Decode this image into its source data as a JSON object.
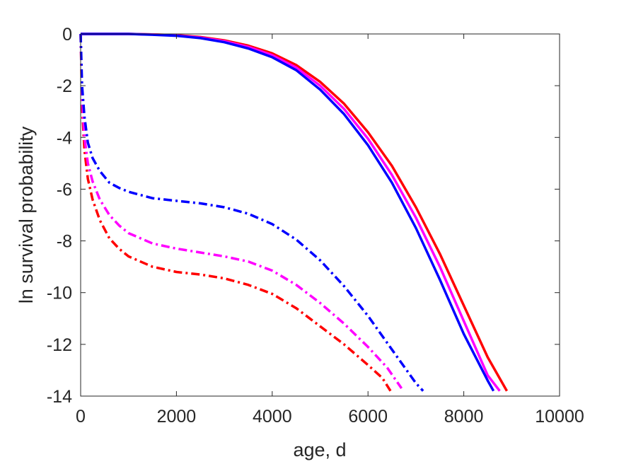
{
  "chart_data": {
    "type": "line",
    "xlabel": "age, d",
    "ylabel": "ln survival probability",
    "xlim": [
      0,
      10000
    ],
    "ylim": [
      -14,
      0
    ],
    "xticks": [
      0,
      2000,
      4000,
      6000,
      8000,
      10000
    ],
    "yticks": [
      -14,
      -12,
      -10,
      -8,
      -6,
      -4,
      -2,
      0
    ],
    "grid": false,
    "legend": "none",
    "series": [
      {
        "color": "#ff0000",
        "style": "solid",
        "x": [
          0,
          500,
          1000,
          1500,
          2000,
          2500,
          3000,
          3500,
          4000,
          4500,
          5000,
          5500,
          6000,
          6500,
          7000,
          7500,
          8000,
          8500,
          8900
        ],
        "y": [
          0,
          0,
          0,
          -0.02,
          -0.05,
          -0.12,
          -0.25,
          -0.45,
          -0.75,
          -1.2,
          -1.85,
          -2.7,
          -3.8,
          -5.1,
          -6.7,
          -8.5,
          -10.5,
          -12.5,
          -13.8
        ]
      },
      {
        "color": "#ff00ff",
        "style": "solid",
        "x": [
          0,
          500,
          1000,
          1500,
          2000,
          2500,
          3000,
          3500,
          4000,
          4500,
          5000,
          5500,
          6000,
          6500,
          7000,
          7500,
          8000,
          8500,
          8750
        ],
        "y": [
          0,
          0,
          0,
          -0.02,
          -0.06,
          -0.14,
          -0.28,
          -0.5,
          -0.82,
          -1.3,
          -2.0,
          -2.9,
          -4.05,
          -5.45,
          -7.1,
          -9.0,
          -11.1,
          -13.2,
          -13.8
        ]
      },
      {
        "color": "#0000ff",
        "style": "solid",
        "x": [
          0,
          500,
          1000,
          1500,
          2000,
          2500,
          3000,
          3500,
          4000,
          4500,
          5000,
          5500,
          6000,
          6500,
          7000,
          7500,
          8000,
          8500,
          8620
        ],
        "y": [
          0,
          0,
          0,
          -0.03,
          -0.07,
          -0.16,
          -0.32,
          -0.56,
          -0.9,
          -1.4,
          -2.15,
          -3.1,
          -4.3,
          -5.75,
          -7.5,
          -9.5,
          -11.6,
          -13.4,
          -13.8
        ]
      },
      {
        "color": "#ff0000",
        "style": "dashdot",
        "x": [
          0,
          30,
          80,
          150,
          250,
          400,
          600,
          800,
          1000,
          1500,
          2000,
          2500,
          3000,
          3500,
          4000,
          4500,
          5000,
          5500,
          6000,
          6300,
          6470
        ],
        "y": [
          0,
          -2.8,
          -4.5,
          -5.6,
          -6.4,
          -7.2,
          -7.9,
          -8.3,
          -8.6,
          -9.0,
          -9.2,
          -9.3,
          -9.45,
          -9.7,
          -10.05,
          -10.6,
          -11.3,
          -12.0,
          -12.8,
          -13.3,
          -13.8
        ]
      },
      {
        "color": "#ff00ff",
        "style": "dashdot",
        "x": [
          0,
          30,
          80,
          150,
          250,
          400,
          600,
          800,
          1000,
          1500,
          2000,
          2500,
          3000,
          3500,
          4000,
          4500,
          5000,
          5500,
          6000,
          6400,
          6700
        ],
        "y": [
          0,
          -2.4,
          -4.0,
          -5.0,
          -5.7,
          -6.4,
          -7.0,
          -7.4,
          -7.7,
          -8.1,
          -8.3,
          -8.45,
          -8.6,
          -8.8,
          -9.15,
          -9.7,
          -10.4,
          -11.2,
          -12.1,
          -12.9,
          -13.7
        ]
      },
      {
        "color": "#0000ff",
        "style": "dashdot",
        "x": [
          0,
          30,
          80,
          150,
          250,
          400,
          600,
          800,
          1000,
          1500,
          2000,
          2500,
          3000,
          3500,
          4000,
          4500,
          5000,
          5500,
          6000,
          6500,
          7000,
          7150
        ],
        "y": [
          0,
          -2.0,
          -3.2,
          -4.2,
          -4.8,
          -5.3,
          -5.75,
          -5.95,
          -6.1,
          -6.35,
          -6.45,
          -6.55,
          -6.7,
          -6.95,
          -7.35,
          -7.95,
          -8.75,
          -9.75,
          -10.9,
          -12.2,
          -13.5,
          -13.8
        ]
      }
    ]
  }
}
